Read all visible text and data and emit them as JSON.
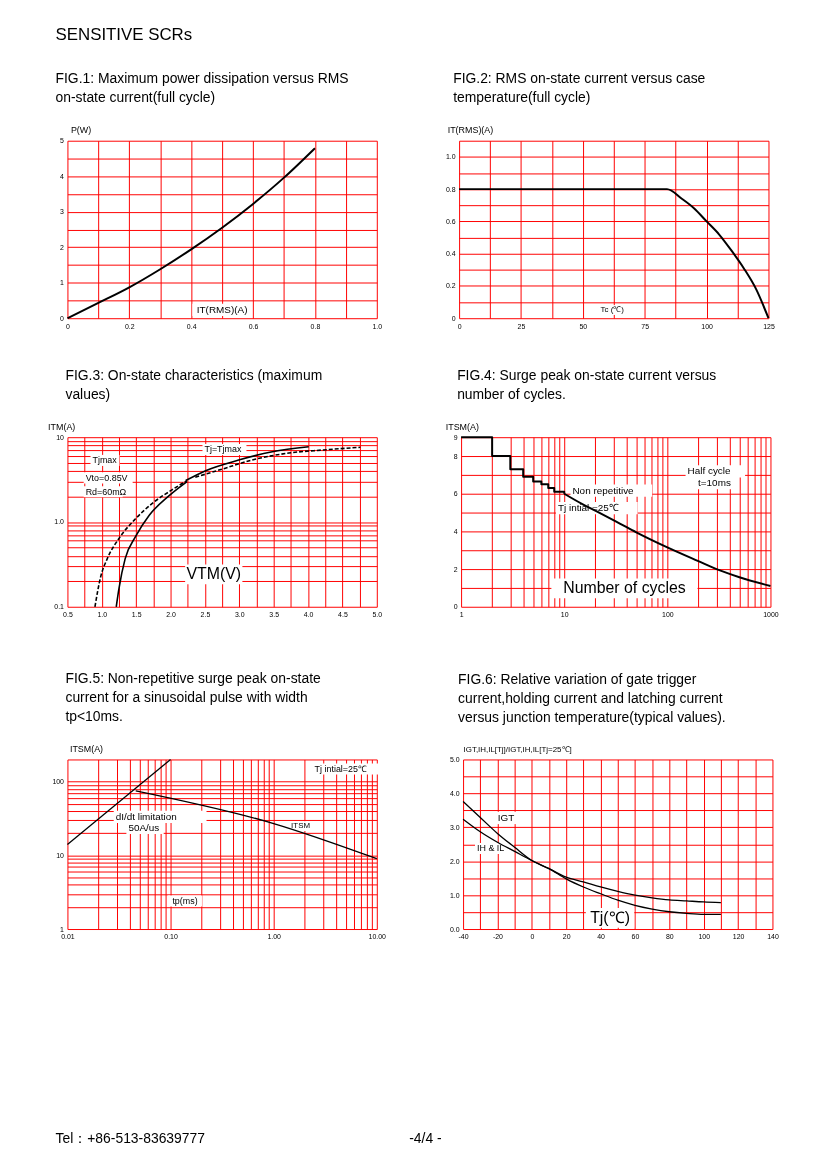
{
  "chart_data": [
    {
      "type": "other",
      "annotations": [
        "SENSITIVE SCRs"
      ]
    },
    {
      "type": "line",
      "title": "FIG.1: Maximum power dissipation versus RMS on-state current(full cycle)",
      "xlabel": "IT(RMS)(A)",
      "ylabel": "P(W)",
      "series": [
        {
          "color": "#000000",
          "x": [
            0,
            0.1,
            0.2,
            0.3,
            0.4,
            0.5,
            0.6,
            0.7,
            0.8
          ],
          "values": [
            0,
            0.43,
            0.87,
            1.38,
            1.94,
            2.55,
            3.22,
            3.96,
            4.79
          ]
        }
      ],
      "xlim": [
        0,
        1
      ],
      "xticks": [
        0,
        {
          "value": 0.1,
          "label": null
        },
        0.2,
        {
          "value": 0.3,
          "label": null
        },
        0.4,
        {
          "value": 0.5,
          "label": null
        },
        0.6,
        {
          "value": 0.7,
          "label": null
        },
        0.8,
        {
          "value": 0.9,
          "label": null
        },
        {
          "value": 1,
          "label": "1.0"
        }
      ],
      "ylim": [
        0,
        5
      ],
      "yticks": [
        0,
        {
          "value": 0.5,
          "label": null
        },
        1,
        {
          "value": 1.5,
          "label": null
        },
        2,
        {
          "value": 2.5,
          "label": null
        },
        3,
        {
          "value": 3.5,
          "label": null
        },
        4,
        {
          "value": 4.5,
          "label": null
        },
        5
      ],
      "grid": true
    },
    {
      "type": "line",
      "title": "FIG.2: RMS on-state current versus case temperature(full cycle)",
      "xlabel": "Tc (℃)",
      "ylabel": "IT(RMS)(A)",
      "series": [
        {
          "color": "#000000",
          "x": [
            0,
            84,
            90,
            95,
            100,
            105,
            110,
            115,
            120,
            125
          ],
          "values": [
            0.8,
            0.8,
            0.74,
            0.68,
            0.6,
            0.52,
            0.42,
            0.31,
            0.18,
            0
          ]
        }
      ],
      "xlim": [
        0,
        125
      ],
      "xticks": [
        0,
        {
          "value": 12.5,
          "label": null
        },
        25,
        {
          "value": 37.5,
          "label": null
        },
        50,
        {
          "value": 62.5,
          "label": null
        },
        75,
        {
          "value": 87.5,
          "label": null
        },
        100,
        {
          "value": 112.5,
          "label": null
        },
        125
      ],
      "ylim": [
        0,
        1.1
      ],
      "yticks": [
        0,
        {
          "value": 0.1,
          "label": null
        },
        0.2,
        {
          "value": 0.3,
          "label": null
        },
        0.4,
        {
          "value": 0.5,
          "label": null
        },
        0.6,
        {
          "value": 0.7,
          "label": null
        },
        0.8,
        {
          "value": 0.9,
          "label": null
        },
        {
          "value": 1,
          "label": "1.0"
        },
        {
          "value": 1.1,
          "label": null
        }
      ],
      "grid": true
    },
    {
      "type": "line",
      "title": "FIG.3: On-state characteristics (maximum values)",
      "xlabel": "VTM(V)",
      "ylabel": "ITM(A)",
      "log": "y",
      "series": [
        {
          "color": "#000000",
          "line_style": "dashed",
          "x": [
            0.9,
            0.98,
            1.08,
            1.25,
            1.49,
            1.76,
            2.02,
            2.24
          ],
          "values": [
            0.1,
            0.22,
            0.37,
            0.64,
            1.09,
            1.72,
            2.39,
            3.08
          ]
        },
        {
          "color": "#000000",
          "x": [
            1.21,
            1.25,
            1.34,
            1.49,
            1.69,
            1.98,
            2.24
          ],
          "values": [
            0.1,
            0.165,
            0.37,
            0.67,
            1.2,
            2.05,
            3.0
          ]
        },
        {
          "color": "#000000",
          "x": [
            2.22,
            2.51,
            2.99,
            3.48,
            4.01
          ],
          "values": [
            3.08,
            4.03,
            5.37,
            6.73,
            7.7
          ]
        },
        {
          "color": "#000000",
          "line_style": "dashed",
          "x": [
            2.36,
            2.75,
            3.23,
            3.72,
            4.2,
            4.76
          ],
          "values": [
            3.37,
            4.2,
            5.5,
            6.5,
            7.05,
            7.6
          ]
        }
      ],
      "xlim": [
        0.5,
        5
      ],
      "xticks": [
        0.5,
        {
          "value": 0.75,
          "label": null
        },
        {
          "value": 1,
          "label": "1.0"
        },
        {
          "value": 1.25,
          "label": null
        },
        1.5,
        {
          "value": 1.75,
          "label": null
        },
        {
          "value": 2,
          "label": "2.0"
        },
        {
          "value": 2.25,
          "label": null
        },
        2.5,
        {
          "value": 2.75,
          "label": null
        },
        {
          "value": 3,
          "label": "3.0"
        },
        {
          "value": 3.25,
          "label": null
        },
        3.5,
        {
          "value": 3.75,
          "label": null
        },
        {
          "value": 4,
          "label": "4.0"
        },
        {
          "value": 4.25,
          "label": null
        },
        4.5,
        {
          "value": 4.75,
          "label": null
        },
        {
          "value": 5,
          "label": "5.0"
        }
      ],
      "ylim": [
        0.1,
        10
      ],
      "yticks": [
        0.1,
        {
          "value": 0.2,
          "label": null
        },
        {
          "value": 0.3,
          "label": null
        },
        {
          "value": 0.4,
          "label": null
        },
        {
          "value": 0.5,
          "label": null
        },
        {
          "value": 0.6,
          "label": null
        },
        {
          "value": 0.7,
          "label": null
        },
        {
          "value": 0.8,
          "label": null
        },
        {
          "value": 0.9,
          "label": null
        },
        {
          "value": 1,
          "label": "1.0"
        },
        {
          "value": 2,
          "label": null
        },
        {
          "value": 3,
          "label": null
        },
        {
          "value": 4,
          "label": null
        },
        {
          "value": 5,
          "label": null
        },
        {
          "value": 6,
          "label": null
        },
        {
          "value": 7,
          "label": null
        },
        {
          "value": 8,
          "label": null
        },
        {
          "value": 9,
          "label": null
        },
        10
      ],
      "grid": true,
      "annotations": [
        "Tjmax",
        "Vto=0.85V",
        "Rd=60mΩ",
        "Tj=Tjmax"
      ]
    },
    {
      "type": "line",
      "title": "FIG.4: Surge peak on-state current versus number of cycles.",
      "xlabel": "Number of cycles",
      "ylabel": "ITSM(A)",
      "log": "x",
      "series": [
        {
          "color": "#000000",
          "type": "step",
          "x": [
            1,
            2,
            3,
            4,
            5,
            6,
            7,
            8,
            10
          ],
          "values": [
            9,
            8,
            7.3,
            6.9,
            6.65,
            6.5,
            6.3,
            6.1,
            6.0
          ]
        },
        {
          "color": "#000000",
          "x": [
            10,
            15,
            20,
            35,
            50,
            100,
            200,
            300,
            500,
            1000
          ],
          "values": [
            6.0,
            5.45,
            5.1,
            4.4,
            3.95,
            3.15,
            2.42,
            2.0,
            1.57,
            1.1
          ]
        }
      ],
      "xlim": [
        1,
        1000
      ],
      "xticks": [
        1,
        {
          "value": 2,
          "label": null
        },
        {
          "value": 3,
          "label": null
        },
        {
          "value": 4,
          "label": null
        },
        {
          "value": 5,
          "label": null
        },
        {
          "value": 6,
          "label": null
        },
        {
          "value": 7,
          "label": null
        },
        {
          "value": 8,
          "label": null
        },
        {
          "value": 9,
          "label": null
        },
        10,
        {
          "value": 20,
          "label": null
        },
        {
          "value": 30,
          "label": null
        },
        {
          "value": 40,
          "label": null
        },
        {
          "value": 50,
          "label": null
        },
        {
          "value": 60,
          "label": null
        },
        {
          "value": 70,
          "label": null
        },
        {
          "value": 80,
          "label": null
        },
        {
          "value": 90,
          "label": null
        },
        100,
        {
          "value": 200,
          "label": null
        },
        {
          "value": 300,
          "label": null
        },
        {
          "value": 400,
          "label": null
        },
        {
          "value": 500,
          "label": null
        },
        {
          "value": 600,
          "label": null
        },
        {
          "value": 700,
          "label": null
        },
        {
          "value": 800,
          "label": null
        },
        {
          "value": 900,
          "label": null
        },
        1000
      ],
      "ylim": [
        0,
        9
      ],
      "yticks": [
        0,
        {
          "value": 1,
          "label": null
        },
        2,
        {
          "value": 3,
          "label": null
        },
        4,
        {
          "value": 5,
          "label": null
        },
        6,
        {
          "value": 7,
          "label": null
        },
        8,
        9
      ],
      "grid": true,
      "annotations": [
        "Non repetitive",
        "Tj intial =25℃",
        "Half cycle",
        "t=10ms"
      ]
    },
    {
      "type": "line",
      "title": "FIG.5: Non-repetitive surge peak on-state current for a sinusoidal pulse with width tp<10ms.",
      "xlabel": "tp(ms)",
      "ylabel": "ITSM(A)",
      "log": "xy",
      "series": [
        {
          "color": "#000000",
          "x": [
            0.01,
            0.1
          ],
          "values": [
            14,
            200
          ]
        },
        {
          "color": "#000000",
          "x": [
            0.046,
            1,
            10
          ],
          "values": [
            75,
            27,
            9
          ]
        }
      ],
      "xlim": [
        0.01,
        10
      ],
      "xticks": [
        0.01,
        {
          "value": 0.02,
          "label": null
        },
        {
          "value": 0.03,
          "label": null
        },
        {
          "value": 0.04,
          "label": null
        },
        {
          "value": 0.05,
          "label": null
        },
        {
          "value": 0.06,
          "label": null
        },
        {
          "value": 0.07,
          "label": null
        },
        {
          "value": 0.08,
          "label": null
        },
        {
          "value": 0.09,
          "label": null
        },
        {
          "value": 0.1,
          "label": "0.10"
        },
        {
          "value": 0.2,
          "label": null
        },
        {
          "value": 0.3,
          "label": null
        },
        {
          "value": 0.4,
          "label": null
        },
        {
          "value": 0.5,
          "label": null
        },
        {
          "value": 0.6,
          "label": null
        },
        {
          "value": 0.7,
          "label": null
        },
        {
          "value": 0.8,
          "label": null
        },
        {
          "value": 0.9,
          "label": null
        },
        {
          "value": 1,
          "label": "1.00"
        },
        {
          "value": 2,
          "label": null
        },
        {
          "value": 3,
          "label": null
        },
        {
          "value": 4,
          "label": null
        },
        {
          "value": 5,
          "label": null
        },
        {
          "value": 6,
          "label": null
        },
        {
          "value": 7,
          "label": null
        },
        {
          "value": 8,
          "label": null
        },
        {
          "value": 9,
          "label": null
        },
        {
          "value": 10,
          "label": "10.00"
        }
      ],
      "ylim": [
        1,
        200
      ],
      "yticks": [
        1,
        {
          "value": 2,
          "label": null
        },
        {
          "value": 3,
          "label": null
        },
        {
          "value": 4,
          "label": null
        },
        {
          "value": 5,
          "label": null
        },
        {
          "value": 6,
          "label": null
        },
        {
          "value": 7,
          "label": null
        },
        {
          "value": 8,
          "label": null
        },
        {
          "value": 9,
          "label": null
        },
        10,
        {
          "value": 20,
          "label": null
        },
        {
          "value": 30,
          "label": null
        },
        {
          "value": 40,
          "label": null
        },
        {
          "value": 50,
          "label": null
        },
        {
          "value": 60,
          "label": null
        },
        {
          "value": 70,
          "label": null
        },
        {
          "value": 80,
          "label": null
        },
        {
          "value": 90,
          "label": null
        },
        100,
        {
          "value": 200,
          "label": null
        }
      ],
      "grid": true,
      "annotations": [
        "Tj intial=25℃",
        "dI/dt limitation",
        "50A/us",
        "ITSM"
      ]
    },
    {
      "type": "line",
      "title": "FIG.6: Relative variation of gate trigger current,holding current and latching current versus junction temperature(typical values).",
      "xlabel": "Tj(℃)",
      "ylabel": "IGT,IH,IL[Tj]/IGT,IH,IL[Tj=25℃]",
      "series": [
        {
          "color": "#000000",
          "x": [
            -40,
            -30,
            -20,
            -10,
            0,
            10,
            20,
            30,
            40,
            50,
            60,
            70,
            80,
            90,
            100,
            110
          ],
          "values": [
            3.76,
            3.29,
            2.82,
            2.41,
            2.02,
            1.78,
            1.48,
            1.24,
            1.04,
            0.85,
            0.7,
            0.59,
            0.51,
            0.46,
            0.43,
            0.43
          ]
        },
        {
          "color": "#000000",
          "x": [
            -40,
            -30,
            -20,
            -10,
            0,
            10,
            20,
            30,
            40,
            50,
            60,
            70,
            80,
            90,
            100,
            110
          ],
          "values": [
            3.24,
            2.87,
            2.56,
            2.29,
            2.02,
            1.78,
            1.53,
            1.39,
            1.24,
            1.11,
            1.0,
            0.92,
            0.86,
            0.83,
            0.8,
            0.78
          ]
        }
      ],
      "xlim": [
        -40,
        140
      ],
      "xticks": [
        -40,
        {
          "value": -30,
          "label": null
        },
        -20,
        {
          "value": -10,
          "label": null
        },
        0,
        {
          "value": 10,
          "label": null
        },
        20,
        {
          "value": 30,
          "label": null
        },
        40,
        {
          "value": 50,
          "label": null
        },
        60,
        {
          "value": 70,
          "label": null
        },
        80,
        {
          "value": 90,
          "label": null
        },
        100,
        {
          "value": 110,
          "label": null
        },
        120,
        {
          "value": 130,
          "label": null
        },
        140
      ],
      "ylim": [
        0,
        5
      ],
      "yticks": [
        {
          "value": 0,
          "label": "0.0"
        },
        {
          "value": 0.5,
          "label": null
        },
        {
          "value": 1,
          "label": "1.0"
        },
        {
          "value": 1.5,
          "label": null
        },
        {
          "value": 2,
          "label": "2.0"
        },
        {
          "value": 2.5,
          "label": null
        },
        {
          "value": 3,
          "label": "3.0"
        },
        {
          "value": 3.5,
          "label": null
        },
        {
          "value": 4,
          "label": "4.0"
        },
        {
          "value": 4.5,
          "label": null
        },
        {
          "value": 5,
          "label": "5.0"
        }
      ],
      "grid": true,
      "annotations": [
        "IGT",
        "IH & IL"
      ]
    },
    {
      "type": "other",
      "annotations": [
        "Tel：+86-513-83639777",
        "-4/4 -"
      ]
    }
  ]
}
